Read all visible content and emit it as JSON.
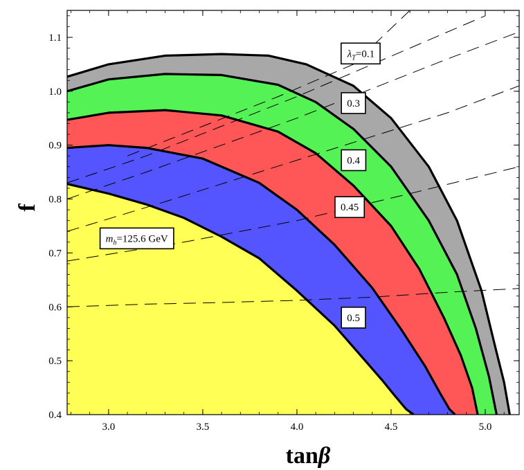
{
  "chart_data": {
    "type": "area",
    "xlabel_main": "tan",
    "xlabel_greek": "β",
    "ylabel": "f",
    "xlim": [
      2.78,
      5.18
    ],
    "ylim": [
      0.4,
      1.15
    ],
    "xticks": [
      3.0,
      3.5,
      4.0,
      4.5,
      5.0
    ],
    "xtick_labels": [
      "3.0",
      "3.5",
      "4.0",
      "4.5",
      "5.0"
    ],
    "yticks": [
      0.4,
      0.5,
      0.6,
      0.7,
      0.8,
      0.9,
      1.0,
      1.1
    ],
    "ytick_labels": [
      "0.4",
      "0.5",
      "0.6",
      "0.7",
      "0.8",
      "0.9",
      "1.0",
      "1.1"
    ],
    "colors": {
      "gray": "#a8a8a8",
      "green": "#55f255",
      "red": "#ff5757",
      "blue": "#5555ff",
      "yellow": "#ffff55"
    },
    "bands": [
      {
        "label": "0.1",
        "color": "#a8a8a8",
        "x": [
          2.78,
          3.0,
          3.3,
          3.6,
          3.85,
          4.05,
          4.3,
          4.5,
          4.7,
          4.85,
          4.98,
          5.05,
          5.1,
          5.13
        ],
        "y": [
          1.027,
          1.05,
          1.066,
          1.069,
          1.066,
          1.05,
          1.01,
          0.95,
          0.86,
          0.76,
          0.63,
          0.53,
          0.46,
          0.4
        ]
      },
      {
        "label": "0.3",
        "color": "#55f255",
        "x": [
          2.78,
          3.0,
          3.3,
          3.6,
          3.9,
          4.1,
          4.3,
          4.5,
          4.7,
          4.85,
          4.95,
          5.02,
          5.06
        ],
        "y": [
          1.0,
          1.022,
          1.032,
          1.03,
          1.012,
          0.98,
          0.93,
          0.86,
          0.76,
          0.66,
          0.56,
          0.47,
          0.4
        ]
      },
      {
        "label": "0.4",
        "color": "#ff5757",
        "x": [
          2.78,
          3.0,
          3.3,
          3.6,
          3.9,
          4.1,
          4.3,
          4.5,
          4.65,
          4.78,
          4.87,
          4.93,
          4.96
        ],
        "y": [
          0.947,
          0.96,
          0.965,
          0.955,
          0.925,
          0.885,
          0.825,
          0.75,
          0.67,
          0.58,
          0.51,
          0.45,
          0.4
        ]
      },
      {
        "label": "0.45",
        "color": "#5555ff",
        "x": [
          2.78,
          3.0,
          3.2,
          3.5,
          3.8,
          4.0,
          4.2,
          4.4,
          4.55,
          4.68,
          4.76,
          4.81,
          4.84
        ],
        "y": [
          0.895,
          0.9,
          0.895,
          0.875,
          0.83,
          0.78,
          0.715,
          0.635,
          0.56,
          0.49,
          0.44,
          0.41,
          0.4
        ]
      },
      {
        "label": "0.5",
        "color": "#ffff55",
        "x": [
          2.78,
          3.0,
          3.2,
          3.4,
          3.6,
          3.8,
          4.0,
          4.2,
          4.35,
          4.45,
          4.52,
          4.58,
          4.62
        ],
        "y": [
          0.828,
          0.81,
          0.79,
          0.765,
          0.73,
          0.69,
          0.63,
          0.565,
          0.505,
          0.465,
          0.435,
          0.41,
          0.4
        ]
      }
    ],
    "labels": [
      {
        "prefix": "λ",
        "sub": "T",
        "text": "=0.1",
        "x": 4.34,
        "y": 1.07
      },
      {
        "text": "0.3",
        "x": 4.3,
        "y": 0.978
      },
      {
        "text": "0.4",
        "x": 4.3,
        "y": 0.872
      },
      {
        "text": "0.45",
        "x": 4.28,
        "y": 0.785
      },
      {
        "text": "0.5",
        "x": 4.3,
        "y": 0.58
      },
      {
        "prefix": "m",
        "sub": "h",
        "text": "=125.6 GeV",
        "x": 3.15,
        "y": 0.727
      }
    ],
    "dashed_curves": [
      {
        "x": [
          2.78,
          3.2,
          3.6,
          4.0,
          4.4,
          4.8,
          5.18
        ],
        "y": [
          0.6,
          0.605,
          0.608,
          0.612,
          0.618,
          0.627,
          0.634
        ]
      },
      {
        "x": [
          2.78,
          3.4,
          4.0,
          4.6,
          5.18
        ],
        "y": [
          0.685,
          0.72,
          0.76,
          0.81,
          0.86
        ]
      },
      {
        "x": [
          2.78,
          3.3,
          3.8,
          4.3,
          4.8,
          5.18
        ],
        "y": [
          0.74,
          0.795,
          0.85,
          0.905,
          0.96,
          1.01
        ]
      },
      {
        "x": [
          2.78,
          3.2,
          3.6,
          4.0,
          4.4,
          4.8,
          5.18
        ],
        "y": [
          0.8,
          0.85,
          0.9,
          0.95,
          1.005,
          1.06,
          1.11
        ]
      },
      {
        "x": [
          2.78,
          3.2,
          3.6,
          4.0,
          4.4,
          4.7,
          5.0
        ],
        "y": [
          0.83,
          0.88,
          0.935,
          0.99,
          1.05,
          1.095,
          1.14
        ]
      },
      {
        "x": [
          3.1,
          3.5,
          3.9,
          4.3,
          4.6
        ],
        "y": [
          0.88,
          0.935,
          0.99,
          1.05,
          1.15
        ]
      }
    ]
  }
}
